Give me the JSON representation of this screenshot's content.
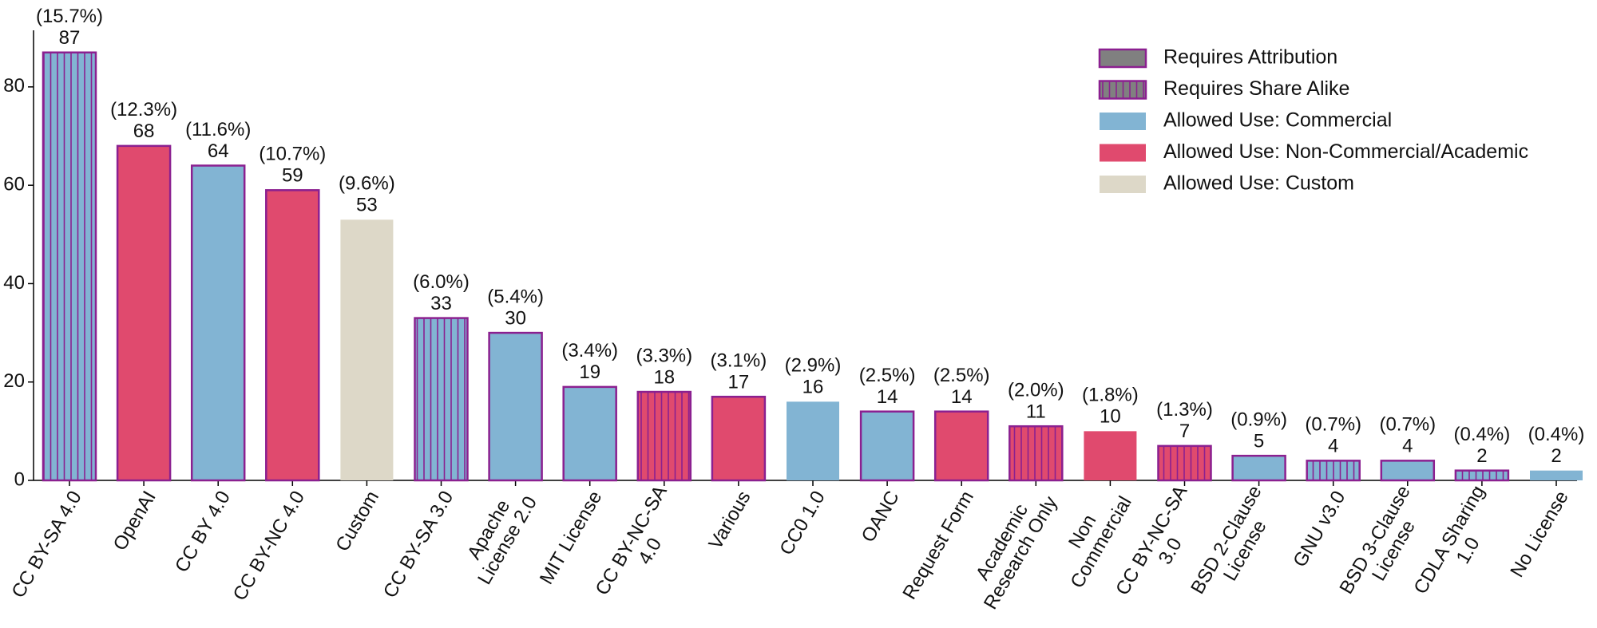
{
  "chart_data": {
    "type": "bar",
    "categories": [
      [
        "CC BY-SA 4.0"
      ],
      [
        "OpenAI"
      ],
      [
        "CC BY 4.0"
      ],
      [
        "CC BY-NC 4.0"
      ],
      [
        "Custom"
      ],
      [
        "CC BY-SA 3.0"
      ],
      [
        "Apache",
        "License 2.0"
      ],
      [
        "MIT License"
      ],
      [
        "CC BY-NC-SA",
        "4.0"
      ],
      [
        "Various"
      ],
      [
        "CC0 1.0"
      ],
      [
        "OANC"
      ],
      [
        "Request Form"
      ],
      [
        "Academic",
        "Research Only"
      ],
      [
        "Non",
        "Commercial"
      ],
      [
        "CC BY-NC-SA",
        "3.0"
      ],
      [
        "BSD 2-Clause",
        "License"
      ],
      [
        "GNU v3.0"
      ],
      [
        "BSD 3-Clause",
        "License"
      ],
      [
        "CDLA Sharing",
        "1.0"
      ],
      [
        "No License"
      ]
    ],
    "values": [
      87,
      68,
      64,
      59,
      53,
      33,
      30,
      19,
      18,
      17,
      16,
      14,
      14,
      11,
      10,
      7,
      5,
      4,
      4,
      2,
      2
    ],
    "share_labels": [
      "(15.7%)",
      "(12.3%)",
      "(11.6%)",
      "(10.7%)",
      "(9.6%)",
      "(6.0%)",
      "(5.4%)",
      "(3.4%)",
      "(3.3%)",
      "(3.1%)",
      "(2.9%)",
      "(2.5%)",
      "(2.5%)",
      "(2.0%)",
      "(1.8%)",
      "(1.3%)",
      "(0.9%)",
      "(0.7%)",
      "(0.7%)",
      "(0.4%)",
      "(0.4%)"
    ],
    "colors": [
      "#82b4d3",
      "#e04a6e",
      "#82b4d3",
      "#e04a6e",
      "#ddd8c8",
      "#82b4d3",
      "#82b4d3",
      "#82b4d3",
      "#e04a6e",
      "#e04a6e",
      "#82b4d3",
      "#82b4d3",
      "#e04a6e",
      "#e04a6e",
      "#e04a6e",
      "#e04a6e",
      "#82b4d3",
      "#82b4d3",
      "#82b4d3",
      "#82b4d3",
      "#82b4d3"
    ],
    "attribution": [
      true,
      true,
      true,
      true,
      false,
      true,
      true,
      true,
      true,
      true,
      false,
      true,
      true,
      true,
      false,
      true,
      true,
      true,
      true,
      true,
      false
    ],
    "share_alike": [
      true,
      false,
      false,
      false,
      false,
      true,
      false,
      false,
      true,
      false,
      false,
      false,
      false,
      true,
      false,
      true,
      false,
      true,
      false,
      true,
      false
    ],
    "edge_color": "#8b2090",
    "ylim": [
      0,
      91.5
    ],
    "yticks": [
      0,
      20,
      40,
      60,
      80
    ],
    "legend": [
      {
        "name": "Requires Attribution",
        "color": "#808080",
        "edge": true,
        "hatch": false
      },
      {
        "name": "Requires Share Alike",
        "color": "#808080",
        "edge": true,
        "hatch": true
      },
      {
        "name": "Allowed Use: Commercial",
        "color": "#82b4d3",
        "edge": false,
        "hatch": false
      },
      {
        "name": "Allowed Use: Non-Commercial/Academic",
        "color": "#e04a6e",
        "edge": false,
        "hatch": false
      },
      {
        "name": "Allowed Use: Custom",
        "color": "#ddd8c8",
        "edge": false,
        "hatch": false
      }
    ]
  }
}
